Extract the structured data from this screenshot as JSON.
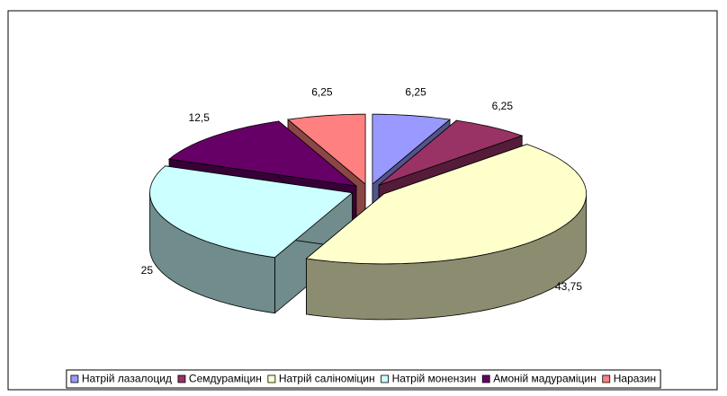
{
  "chart_data": {
    "type": "pie3d",
    "categories": [
      "Натрій лазалоцид",
      "Семдураміцин",
      "Натрій саліноміцин",
      "Натрій монензин",
      "Амоній мадураміцин",
      "Наразин"
    ],
    "values": [
      6.25,
      6.25,
      43.75,
      25,
      12.5,
      6.25
    ],
    "value_labels": [
      "6,25",
      "6,25",
      "43,75",
      "25",
      "12,5",
      "6,25"
    ],
    "colors": [
      "#9999ff",
      "#993366",
      "#ffffcc",
      "#ccffff",
      "#660066",
      "#ff8080"
    ],
    "legend": "bottom"
  }
}
